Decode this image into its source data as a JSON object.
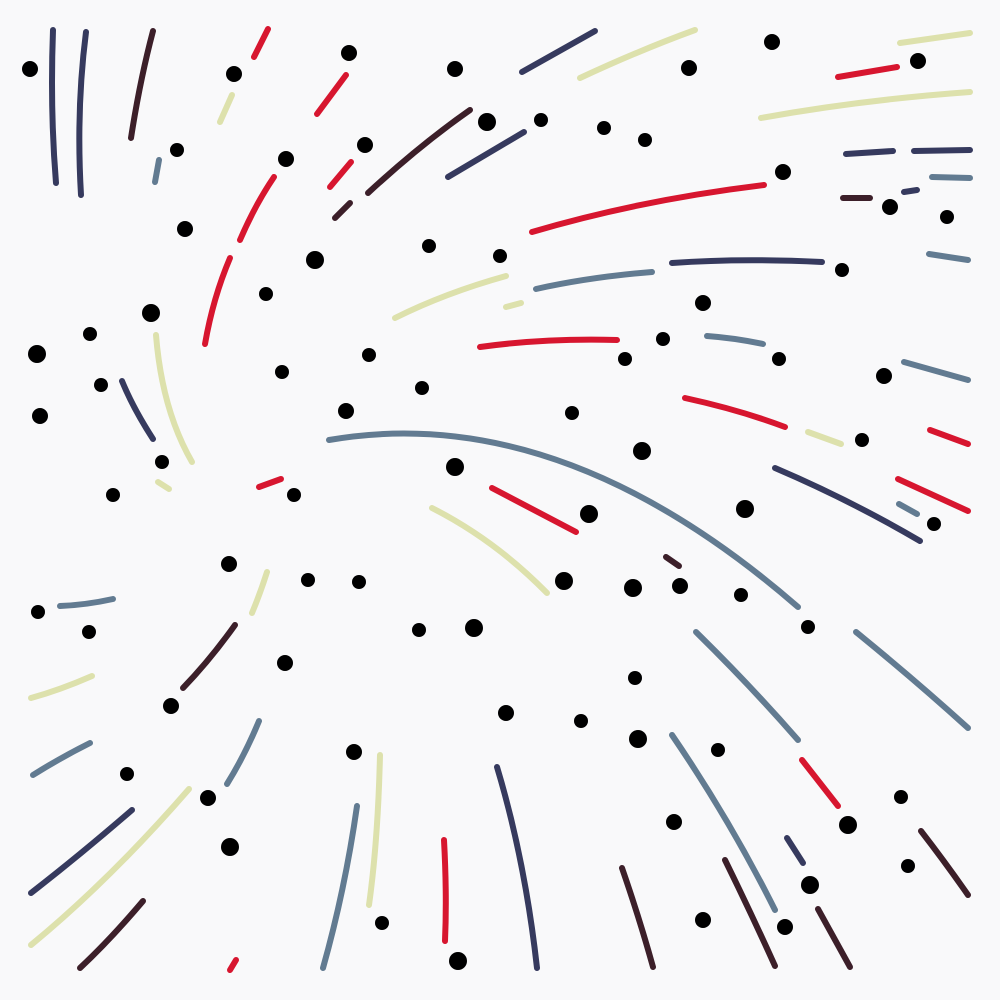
{
  "palette": {
    "background": "#f9f9fa",
    "navy": "#363a5e",
    "red": "#d7162f",
    "maroon": "#3c1f29",
    "olive": "#dde1ac",
    "slate": "#627b91",
    "dot": "#000000"
  }
}
